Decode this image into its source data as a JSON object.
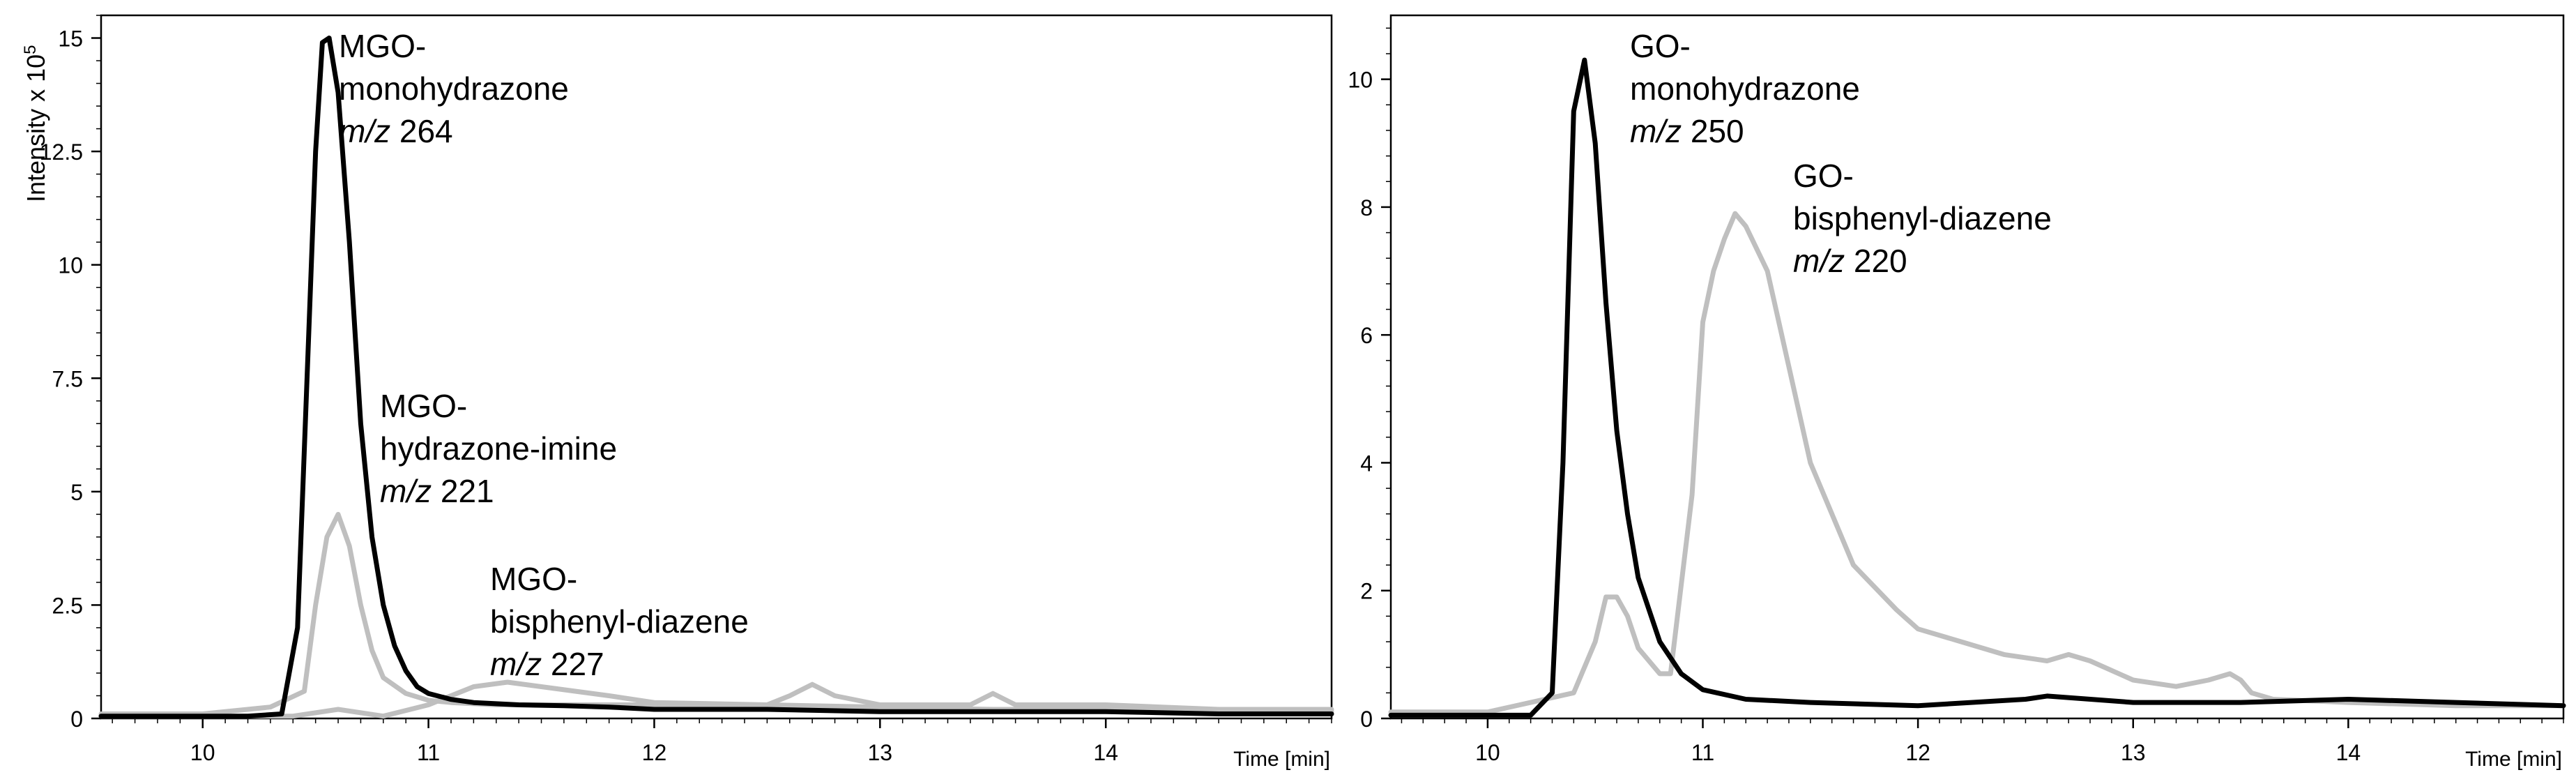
{
  "chart_data": [
    {
      "type": "line",
      "ylabel": "Intensity x 10",
      "ylabel_exponent": "5",
      "xlabel": "Time [min]",
      "xlim": [
        9.55,
        15.0
      ],
      "ylim": [
        0,
        15.5
      ],
      "x_ticks": [
        "10",
        "11",
        "12",
        "13",
        "14"
      ],
      "y_ticks": [
        "0",
        "2.5",
        "5",
        "7.5",
        "10",
        "12.5",
        "15"
      ],
      "y_tick_values": [
        0,
        2.5,
        5,
        7.5,
        10,
        12.5,
        15
      ],
      "grid": false,
      "series": [
        {
          "color": "#000000",
          "x": [
            9.55,
            10.0,
            10.2,
            10.35,
            10.42,
            10.47,
            10.5,
            10.53,
            10.56,
            10.6,
            10.65,
            10.7,
            10.75,
            10.8,
            10.85,
            10.9,
            10.95,
            11.0,
            11.1,
            11.2,
            11.4,
            11.6,
            11.8,
            12.0,
            12.5,
            13.0,
            13.5,
            13.8,
            14.0,
            14.5,
            15.0
          ],
          "values": [
            0.05,
            0.05,
            0.05,
            0.1,
            2.0,
            8.5,
            12.5,
            14.9,
            15.0,
            13.8,
            10.5,
            6.5,
            4.0,
            2.5,
            1.6,
            1.05,
            0.7,
            0.55,
            0.42,
            0.35,
            0.3,
            0.28,
            0.25,
            0.2,
            0.2,
            0.15,
            0.15,
            0.15,
            0.15,
            0.1,
            0.1
          ]
        },
        {
          "color": "#bfbfbf",
          "x": [
            9.55,
            10.0,
            10.3,
            10.45,
            10.5,
            10.55,
            10.6,
            10.65,
            10.7,
            10.75,
            10.8,
            10.9,
            11.0,
            11.1,
            11.3,
            11.5,
            12.0,
            12.5,
            12.6,
            12.7,
            12.8,
            13.0,
            13.4,
            13.5,
            13.6,
            14.0,
            14.5,
            15.0
          ],
          "values": [
            0.1,
            0.1,
            0.25,
            0.6,
            2.5,
            4.0,
            4.5,
            3.8,
            2.5,
            1.5,
            0.9,
            0.55,
            0.4,
            0.35,
            0.3,
            0.3,
            0.3,
            0.3,
            0.5,
            0.75,
            0.5,
            0.3,
            0.3,
            0.55,
            0.3,
            0.3,
            0.2,
            0.2
          ]
        },
        {
          "color": "#bfbfbf",
          "x": [
            9.55,
            10.4,
            10.6,
            10.8,
            11.0,
            11.2,
            11.35,
            11.5,
            11.8,
            12.0,
            12.5,
            13.0,
            13.5,
            14.0,
            14.5,
            15.0
          ],
          "values": [
            0.05,
            0.05,
            0.2,
            0.05,
            0.3,
            0.7,
            0.8,
            0.7,
            0.5,
            0.35,
            0.3,
            0.25,
            0.2,
            0.2,
            0.2,
            0.15
          ]
        }
      ],
      "annotations": [
        {
          "name": "MGO-",
          "compound": "monohydrazone",
          "mz_prefix": "m/z",
          "mz": "264"
        },
        {
          "name": "MGO-",
          "compound": "hydrazone-imine",
          "mz_prefix": "m/z",
          "mz": "221"
        },
        {
          "name": "MGO-",
          "compound": "bisphenyl-diazene",
          "mz_prefix": "m/z",
          "mz": "227"
        }
      ]
    },
    {
      "type": "line",
      "xlabel": "Time [min]",
      "xlim": [
        9.55,
        15.0
      ],
      "ylim": [
        0,
        11
      ],
      "x_ticks": [
        "10",
        "11",
        "12",
        "13",
        "14"
      ],
      "y_ticks": [
        "0",
        "2",
        "4",
        "6",
        "8",
        "10"
      ],
      "y_tick_values": [
        0,
        2,
        4,
        6,
        8,
        10
      ],
      "grid": false,
      "series": [
        {
          "color": "#000000",
          "x": [
            9.55,
            10.0,
            10.2,
            10.3,
            10.35,
            10.4,
            10.45,
            10.5,
            10.55,
            10.6,
            10.65,
            10.7,
            10.8,
            10.9,
            11.0,
            11.2,
            11.5,
            12.0,
            12.5,
            12.6,
            13.0,
            13.5,
            14.0,
            14.5,
            15.0
          ],
          "values": [
            0.05,
            0.05,
            0.05,
            0.4,
            4.0,
            9.5,
            10.3,
            9.0,
            6.5,
            4.5,
            3.2,
            2.2,
            1.2,
            0.7,
            0.45,
            0.3,
            0.25,
            0.2,
            0.3,
            0.35,
            0.25,
            0.25,
            0.3,
            0.25,
            0.2
          ]
        },
        {
          "color": "#bfbfbf",
          "x": [
            9.55,
            10.0,
            10.4,
            10.5,
            10.55,
            10.6,
            10.65,
            10.7,
            10.8,
            10.85,
            10.95,
            11.0,
            11.05,
            11.1,
            11.15,
            11.2,
            11.3,
            11.4,
            11.5,
            11.7,
            11.9,
            12.0,
            12.2,
            12.4,
            12.6,
            12.7,
            12.8,
            13.0,
            13.2,
            13.35,
            13.45,
            13.5,
            13.55,
            13.65,
            14.0,
            14.5,
            15.0
          ],
          "values": [
            0.1,
            0.1,
            0.4,
            1.2,
            1.9,
            1.9,
            1.6,
            1.1,
            0.7,
            0.7,
            3.5,
            6.2,
            7.0,
            7.5,
            7.9,
            7.7,
            7.0,
            5.5,
            4.0,
            2.4,
            1.7,
            1.4,
            1.2,
            1.0,
            0.9,
            1.0,
            0.9,
            0.6,
            0.5,
            0.6,
            0.7,
            0.6,
            0.4,
            0.3,
            0.25,
            0.2,
            0.2
          ]
        }
      ],
      "annotations": [
        {
          "name": "GO-",
          "compound": "monohydrazone",
          "mz_prefix": "m/z",
          "mz": "250"
        },
        {
          "name": "GO-",
          "compound": "bisphenyl-diazene",
          "mz_prefix": "m/z",
          "mz": "220"
        }
      ]
    }
  ]
}
